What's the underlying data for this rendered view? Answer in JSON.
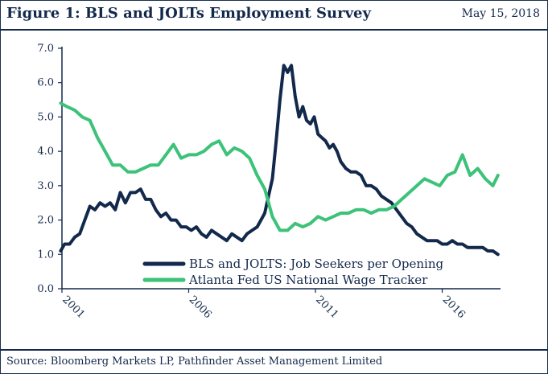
{
  "header": {
    "title": "Figure 1:  BLS and JOLTs Employment Survey",
    "date": "May 15, 2018"
  },
  "footer": {
    "source": "Source: Bloomberg Markets LP, Pathfinder Asset Management Limited"
  },
  "colors": {
    "navy": "#13294b",
    "green": "#3cc279",
    "border": "#1b2f4d"
  },
  "chart_data": {
    "type": "line",
    "ylim": [
      0,
      7
    ],
    "xlim": [
      2001.0,
      2018.3
    ],
    "yticks": [
      0,
      1,
      2,
      3,
      4,
      5,
      6,
      7
    ],
    "ytick_labels": [
      "0.0",
      "1.0",
      "2.0",
      "3.0",
      "4.0",
      "5.0",
      "6.0",
      "7.0"
    ],
    "xticks": [
      2001,
      2006,
      2011,
      2016
    ],
    "xtick_labels": [
      "2001",
      "2006",
      "2011",
      "2016"
    ],
    "legend_position": "bottom-center",
    "grid": false,
    "series": [
      {
        "name": "BLS and JOLTS: Job Seekers per Opening",
        "color": "#13294b",
        "x": [
          2000.95,
          2001.1,
          2001.3,
          2001.5,
          2001.7,
          2001.9,
          2002.1,
          2002.3,
          2002.5,
          2002.7,
          2002.9,
          2003.1,
          2003.3,
          2003.5,
          2003.7,
          2003.9,
          2004.1,
          2004.3,
          2004.5,
          2004.7,
          2004.9,
          2005.1,
          2005.3,
          2005.5,
          2005.7,
          2005.9,
          2006.1,
          2006.3,
          2006.5,
          2006.7,
          2006.9,
          2007.1,
          2007.3,
          2007.5,
          2007.7,
          2007.9,
          2008.1,
          2008.3,
          2008.5,
          2008.7,
          2008.85,
          2009.0,
          2009.15,
          2009.3,
          2009.45,
          2009.6,
          2009.75,
          2009.9,
          2010.05,
          2010.2,
          2010.35,
          2010.5,
          2010.65,
          2010.8,
          2010.95,
          2011.1,
          2011.25,
          2011.4,
          2011.55,
          2011.7,
          2011.85,
          2012.0,
          2012.2,
          2012.4,
          2012.6,
          2012.8,
          2013.0,
          2013.2,
          2013.4,
          2013.6,
          2013.8,
          2014.0,
          2014.2,
          2014.4,
          2014.6,
          2014.8,
          2015.0,
          2015.2,
          2015.4,
          2015.6,
          2015.8,
          2016.0,
          2016.2,
          2016.4,
          2016.6,
          2016.8,
          2017.0,
          2017.2,
          2017.4,
          2017.6,
          2017.8,
          2018.0,
          2018.2
        ],
        "y": [
          1.1,
          1.3,
          1.3,
          1.5,
          1.6,
          2.0,
          2.4,
          2.3,
          2.5,
          2.4,
          2.5,
          2.3,
          2.8,
          2.5,
          2.8,
          2.8,
          2.9,
          2.6,
          2.6,
          2.3,
          2.1,
          2.2,
          2.0,
          2.0,
          1.8,
          1.8,
          1.7,
          1.8,
          1.6,
          1.5,
          1.7,
          1.6,
          1.5,
          1.4,
          1.6,
          1.5,
          1.4,
          1.6,
          1.7,
          1.8,
          2.0,
          2.2,
          2.7,
          3.2,
          4.3,
          5.5,
          6.5,
          6.3,
          6.5,
          5.6,
          5.0,
          5.3,
          4.9,
          4.8,
          5.0,
          4.5,
          4.4,
          4.3,
          4.1,
          4.2,
          4.0,
          3.7,
          3.5,
          3.4,
          3.4,
          3.3,
          3.0,
          3.0,
          2.9,
          2.7,
          2.6,
          2.5,
          2.3,
          2.1,
          1.9,
          1.8,
          1.6,
          1.5,
          1.4,
          1.4,
          1.4,
          1.3,
          1.3,
          1.4,
          1.3,
          1.3,
          1.2,
          1.2,
          1.2,
          1.2,
          1.1,
          1.1,
          1.0
        ]
      },
      {
        "name": "Atlanta Fed US National Wage Tracker",
        "color": "#3cc279",
        "x": [
          2000.95,
          2001.2,
          2001.5,
          2001.8,
          2002.1,
          2002.4,
          2002.7,
          2003.0,
          2003.3,
          2003.6,
          2003.9,
          2004.2,
          2004.5,
          2004.8,
          2005.1,
          2005.4,
          2005.7,
          2006.0,
          2006.3,
          2006.6,
          2006.9,
          2007.2,
          2007.5,
          2007.8,
          2008.1,
          2008.4,
          2008.7,
          2009.0,
          2009.3,
          2009.6,
          2009.9,
          2010.2,
          2010.5,
          2010.8,
          2011.1,
          2011.4,
          2011.7,
          2012.0,
          2012.3,
          2012.6,
          2012.9,
          2013.2,
          2013.5,
          2013.8,
          2014.1,
          2014.4,
          2014.7,
          2015.0,
          2015.3,
          2015.6,
          2015.9,
          2016.2,
          2016.5,
          2016.8,
          2017.1,
          2017.4,
          2017.7,
          2018.0,
          2018.2
        ],
        "y": [
          5.4,
          5.3,
          5.2,
          5.0,
          4.9,
          4.4,
          4.0,
          3.6,
          3.6,
          3.4,
          3.4,
          3.5,
          3.6,
          3.6,
          3.9,
          4.2,
          3.8,
          3.9,
          3.9,
          4.0,
          4.2,
          4.3,
          3.9,
          4.1,
          4.0,
          3.8,
          3.3,
          2.9,
          2.1,
          1.7,
          1.7,
          1.9,
          1.8,
          1.9,
          2.1,
          2.0,
          2.1,
          2.2,
          2.2,
          2.3,
          2.3,
          2.2,
          2.3,
          2.3,
          2.4,
          2.6,
          2.8,
          3.0,
          3.2,
          3.1,
          3.0,
          3.3,
          3.4,
          3.9,
          3.3,
          3.5,
          3.2,
          3.0,
          3.3
        ]
      }
    ]
  }
}
